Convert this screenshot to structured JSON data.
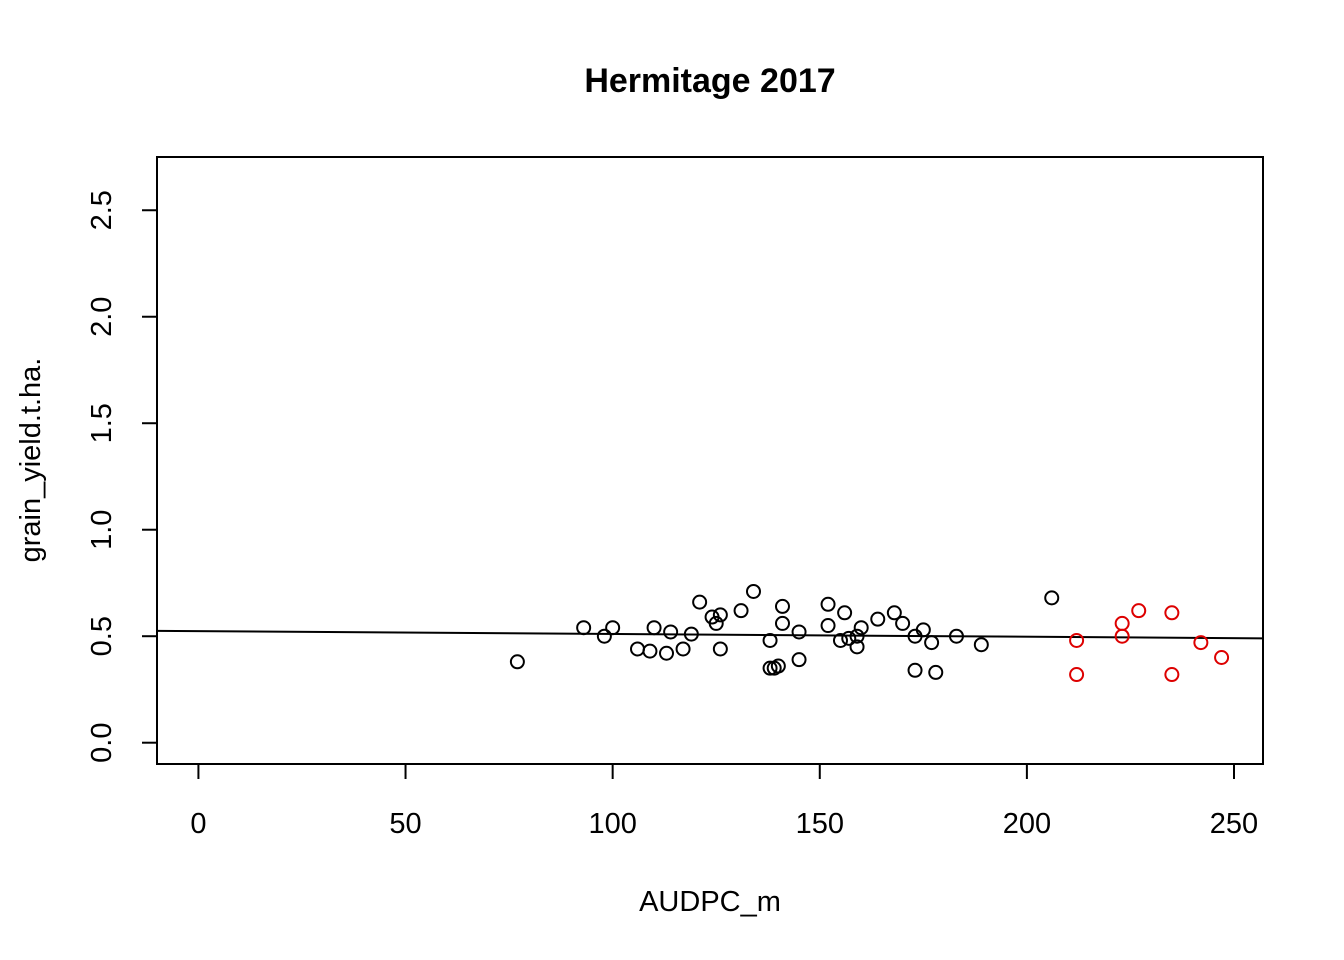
{
  "chart_data": {
    "type": "scatter",
    "title": "Hermitage 2017",
    "xlabel": "AUDPC_m",
    "ylabel": "grain_yield.t.ha.",
    "xlim": [
      -10,
      257
    ],
    "ylim": [
      -0.1,
      2.75
    ],
    "x_ticks": [
      0,
      50,
      100,
      150,
      200,
      250
    ],
    "y_ticks": [
      0.0,
      0.5,
      1.0,
      1.5,
      2.0,
      2.5
    ],
    "x_tick_labels": [
      "0",
      "50",
      "100",
      "150",
      "200",
      "250"
    ],
    "y_tick_labels": [
      "0.0",
      "0.5",
      "1.0",
      "1.5",
      "2.0",
      "2.5"
    ],
    "grid": false,
    "legend": "none",
    "colors": {
      "group1": "#000000",
      "group2": "#dd0000",
      "fit_line": "#000000"
    },
    "fit_line": {
      "x": [
        -10,
        257
      ],
      "y": [
        0.525,
        0.49
      ]
    },
    "series": [
      {
        "color": "#000000",
        "points": [
          [
            77,
            0.38
          ],
          [
            93,
            0.54
          ],
          [
            98,
            0.5
          ],
          [
            100,
            0.54
          ],
          [
            106,
            0.44
          ],
          [
            109,
            0.43
          ],
          [
            110,
            0.54
          ],
          [
            113,
            0.42
          ],
          [
            114,
            0.52
          ],
          [
            117,
            0.44
          ],
          [
            119,
            0.51
          ],
          [
            121,
            0.66
          ],
          [
            124,
            0.59
          ],
          [
            125,
            0.56
          ],
          [
            126,
            0.6
          ],
          [
            126,
            0.44
          ],
          [
            131,
            0.62
          ],
          [
            134,
            0.71
          ],
          [
            138,
            0.48
          ],
          [
            138,
            0.35
          ],
          [
            139,
            0.35
          ],
          [
            140,
            0.36
          ],
          [
            141,
            0.56
          ],
          [
            141,
            0.64
          ],
          [
            145,
            0.52
          ],
          [
            145,
            0.39
          ],
          [
            152,
            0.65
          ],
          [
            152,
            0.55
          ],
          [
            155,
            0.48
          ],
          [
            156,
            0.61
          ],
          [
            157,
            0.49
          ],
          [
            159,
            0.45
          ],
          [
            159,
            0.5
          ],
          [
            160,
            0.54
          ],
          [
            164,
            0.58
          ],
          [
            168,
            0.61
          ],
          [
            170,
            0.56
          ],
          [
            173,
            0.5
          ],
          [
            173,
            0.34
          ],
          [
            175,
            0.53
          ],
          [
            177,
            0.47
          ],
          [
            178,
            0.33
          ],
          [
            183,
            0.5
          ],
          [
            189,
            0.46
          ],
          [
            206,
            0.68
          ]
        ]
      },
      {
        "color": "#dd0000",
        "points": [
          [
            212,
            0.48
          ],
          [
            212,
            0.32
          ],
          [
            223,
            0.56
          ],
          [
            223,
            0.5
          ],
          [
            227,
            0.62
          ],
          [
            235,
            0.61
          ],
          [
            235,
            0.32
          ],
          [
            242,
            0.47
          ],
          [
            247,
            0.4
          ]
        ]
      }
    ]
  }
}
